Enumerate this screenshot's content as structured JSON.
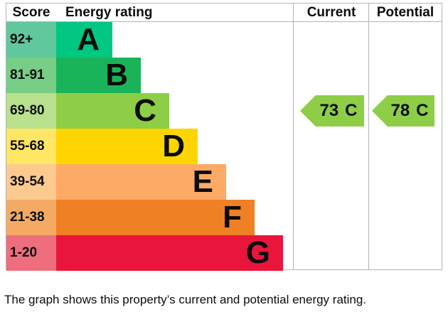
{
  "header": {
    "score": "Score",
    "energy_rating": "Energy rating",
    "current": "Current",
    "potential": "Potential"
  },
  "bands": [
    {
      "letter": "A",
      "score": "92+",
      "color": "#00c781",
      "tint": "#61c79c"
    },
    {
      "letter": "B",
      "score": "81-91",
      "color": "#19b459",
      "tint": "#77ce86"
    },
    {
      "letter": "C",
      "score": "69-80",
      "color": "#8dce46",
      "tint": "#b9e18d"
    },
    {
      "letter": "D",
      "score": "55-68",
      "color": "#ffd500",
      "tint": "#ffe664"
    },
    {
      "letter": "E",
      "score": "39-54",
      "color": "#fcaa65",
      "tint": "#fcca8f"
    },
    {
      "letter": "F",
      "score": "21-38",
      "color": "#ef8023",
      "tint": "#f4aa62"
    },
    {
      "letter": "G",
      "score": "1-20",
      "color": "#e9153b",
      "tint": "#ee6e7e"
    }
  ],
  "current": {
    "value": "73",
    "band": "C",
    "color": "#8dce46"
  },
  "potential": {
    "value": "78",
    "band": "C",
    "color": "#8dce46"
  },
  "footer": "The graph shows this property’s current and potential energy rating.",
  "colors": {
    "grid_line": "#b1b4b6",
    "text": "#0b0c0c"
  },
  "chart_data": {
    "type": "bar",
    "title": "Energy rating (EPC) band chart",
    "categories": [
      "A",
      "B",
      "C",
      "D",
      "E",
      "F",
      "G"
    ],
    "score_ranges": [
      "92+",
      "81-91",
      "69-80",
      "55-68",
      "39-54",
      "21-38",
      "1-20"
    ],
    "values": [
      1,
      2,
      3,
      4,
      5,
      6,
      7
    ],
    "band_colors": [
      "#00c781",
      "#19b459",
      "#8dce46",
      "#ffd500",
      "#fcaa65",
      "#ef8023",
      "#e9153b"
    ],
    "markers": [
      {
        "name": "Current",
        "value": 73,
        "band": "C"
      },
      {
        "name": "Potential",
        "value": 78,
        "band": "C"
      }
    ],
    "xlabel": "",
    "ylabel": "Score",
    "legend": false,
    "grid": false
  }
}
